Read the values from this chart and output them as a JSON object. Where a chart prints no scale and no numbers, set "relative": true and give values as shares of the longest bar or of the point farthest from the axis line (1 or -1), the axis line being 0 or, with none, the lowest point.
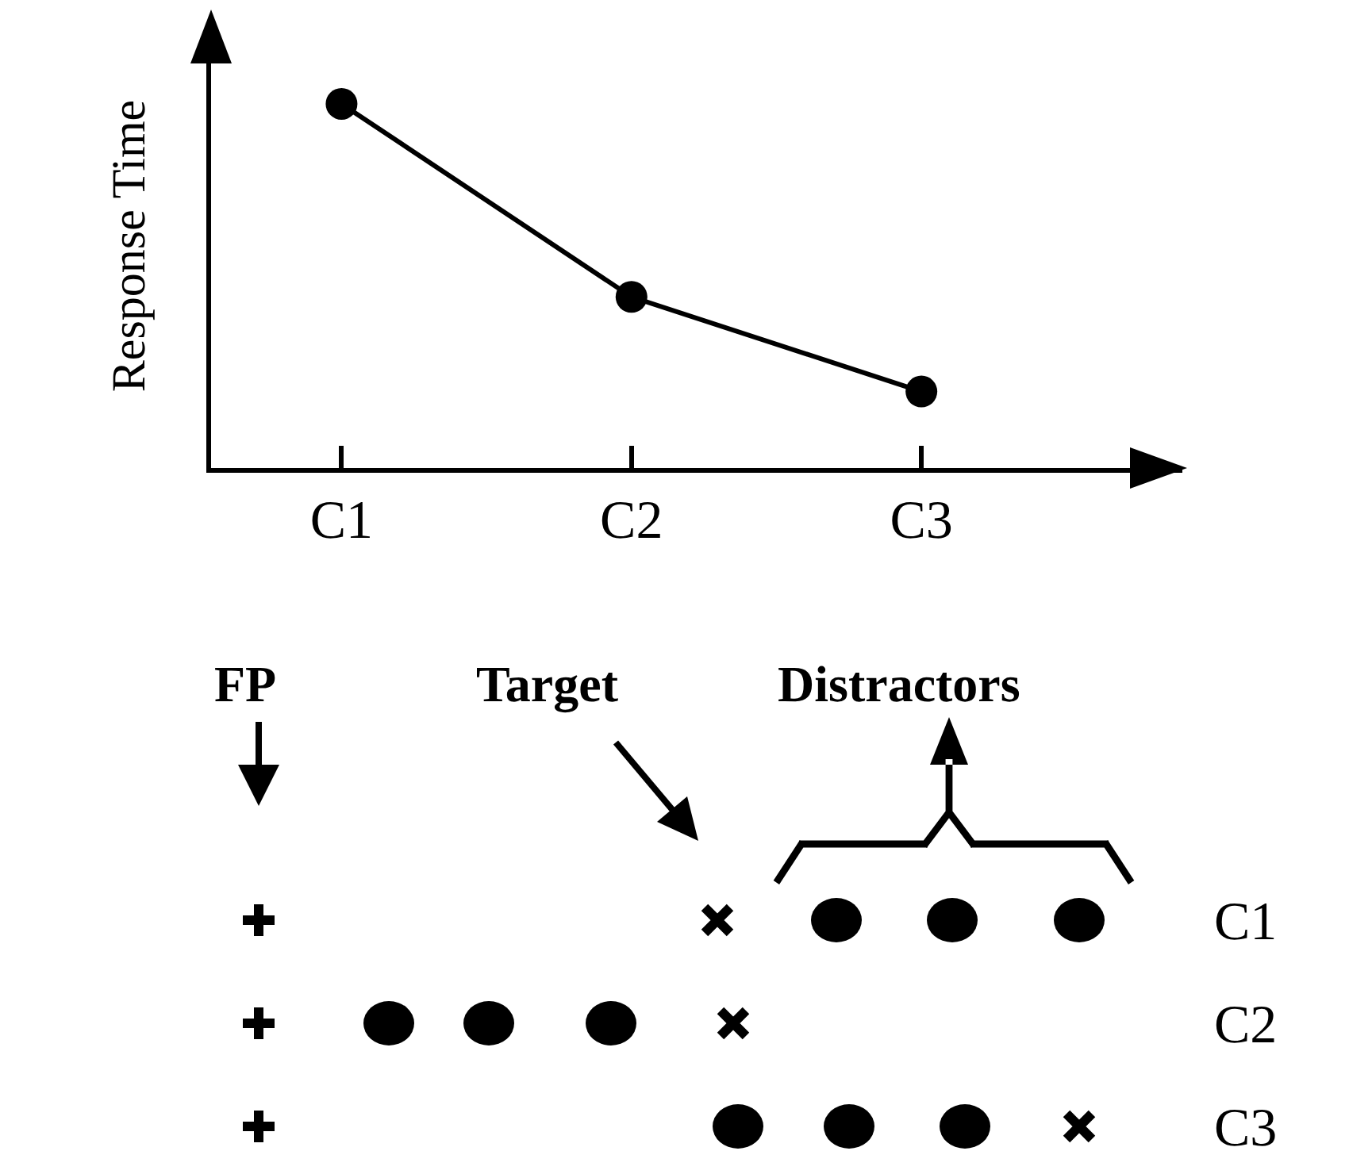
{
  "chart_data": {
    "type": "line",
    "ylabel": "Response Time",
    "categories": [
      "C1",
      "C2",
      "C3"
    ],
    "values": [
      1,
      0.47,
      0.21
    ],
    "color": "#000000",
    "relative": true,
    "marker": "circle",
    "line_style": "solid",
    "grid": false,
    "legend": false,
    "annotations": [
      "FP",
      "Target",
      "Distractors"
    ]
  }
}
